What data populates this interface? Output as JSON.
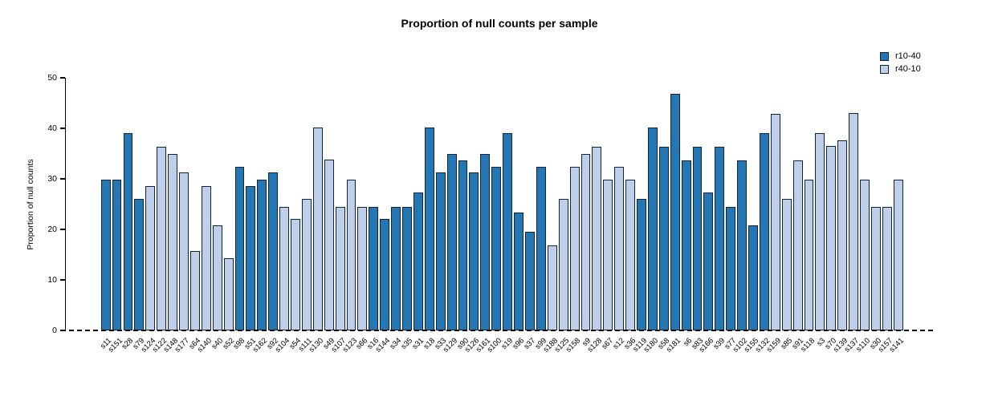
{
  "chart_data": {
    "type": "bar",
    "title": "Proportion of null counts per sample",
    "ylabel": "Proportion of null counts",
    "xlabel": "",
    "ylim": [
      0,
      50
    ],
    "yticks": [
      0,
      10,
      20,
      30,
      40,
      50
    ],
    "grid": false,
    "legend_position": "top-right",
    "baseline_style": "dashed-zero-line",
    "bar_border_color": "#0f2537",
    "series": [
      {
        "name": "r10-40",
        "color": "#2577B3"
      },
      {
        "name": "r40-10",
        "color": "#BFCEE9"
      }
    ],
    "samples": [
      {
        "id": "s11",
        "series": "r10-40",
        "value": 29.8
      },
      {
        "id": "s151",
        "series": "r10-40",
        "value": 29.8
      },
      {
        "id": "s28",
        "series": "r10-40",
        "value": 39.0
      },
      {
        "id": "s79",
        "series": "r10-40",
        "value": 26.0
      },
      {
        "id": "s124",
        "series": "r40-10",
        "value": 28.6
      },
      {
        "id": "s122",
        "series": "r40-10",
        "value": 36.4
      },
      {
        "id": "s148",
        "series": "r40-10",
        "value": 35.0
      },
      {
        "id": "s177",
        "series": "r40-10",
        "value": 31.2
      },
      {
        "id": "s64",
        "series": "r40-10",
        "value": 15.7
      },
      {
        "id": "s140",
        "series": "r40-10",
        "value": 28.5
      },
      {
        "id": "s40",
        "series": "r40-10",
        "value": 20.8
      },
      {
        "id": "s52",
        "series": "r40-10",
        "value": 14.3
      },
      {
        "id": "s98",
        "series": "r10-40",
        "value": 32.4
      },
      {
        "id": "s51",
        "series": "r10-40",
        "value": 28.5
      },
      {
        "id": "s162",
        "series": "r10-40",
        "value": 29.8
      },
      {
        "id": "s92",
        "series": "r10-40",
        "value": 31.2
      },
      {
        "id": "s104",
        "series": "r40-10",
        "value": 24.5
      },
      {
        "id": "s54",
        "series": "r40-10",
        "value": 22.0
      },
      {
        "id": "s111",
        "series": "r40-10",
        "value": 26.0
      },
      {
        "id": "s130",
        "series": "r40-10",
        "value": 40.2
      },
      {
        "id": "s49",
        "series": "r40-10",
        "value": 33.8
      },
      {
        "id": "s107",
        "series": "r40-10",
        "value": 24.5
      },
      {
        "id": "s123",
        "series": "r40-10",
        "value": 29.8
      },
      {
        "id": "s66",
        "series": "r40-10",
        "value": 24.5
      },
      {
        "id": "s16",
        "series": "r10-40",
        "value": 24.5
      },
      {
        "id": "s144",
        "series": "r10-40",
        "value": 22.0
      },
      {
        "id": "s34",
        "series": "r10-40",
        "value": 24.5
      },
      {
        "id": "s35",
        "series": "r10-40",
        "value": 24.5
      },
      {
        "id": "s31",
        "series": "r10-40",
        "value": 27.3
      },
      {
        "id": "s18",
        "series": "r10-40",
        "value": 40.2
      },
      {
        "id": "s33",
        "series": "r10-40",
        "value": 31.2
      },
      {
        "id": "s129",
        "series": "r10-40",
        "value": 35.0
      },
      {
        "id": "s90",
        "series": "r10-40",
        "value": 33.7
      },
      {
        "id": "s126",
        "series": "r10-40",
        "value": 31.2
      },
      {
        "id": "s161",
        "series": "r10-40",
        "value": 35.0
      },
      {
        "id": "s100",
        "series": "r10-40",
        "value": 32.4
      },
      {
        "id": "s19",
        "series": "r10-40",
        "value": 39.0
      },
      {
        "id": "s96",
        "series": "r10-40",
        "value": 23.3
      },
      {
        "id": "s37",
        "series": "r10-40",
        "value": 19.5
      },
      {
        "id": "s99",
        "series": "r10-40",
        "value": 32.4
      },
      {
        "id": "s188",
        "series": "r40-10",
        "value": 16.8
      },
      {
        "id": "s125",
        "series": "r40-10",
        "value": 26.0
      },
      {
        "id": "s158",
        "series": "r40-10",
        "value": 32.4
      },
      {
        "id": "s9",
        "series": "r40-10",
        "value": 35.0
      },
      {
        "id": "s128",
        "series": "r40-10",
        "value": 36.4
      },
      {
        "id": "s67",
        "series": "r40-10",
        "value": 29.8
      },
      {
        "id": "s12",
        "series": "r40-10",
        "value": 32.4
      },
      {
        "id": "s36",
        "series": "r40-10",
        "value": 29.8
      },
      {
        "id": "s119",
        "series": "r10-40",
        "value": 26.0
      },
      {
        "id": "s180",
        "series": "r10-40",
        "value": 40.2
      },
      {
        "id": "s58",
        "series": "r10-40",
        "value": 36.4
      },
      {
        "id": "s181",
        "series": "r10-40",
        "value": 46.8
      },
      {
        "id": "s6",
        "series": "r10-40",
        "value": 33.7
      },
      {
        "id": "s83",
        "series": "r10-40",
        "value": 36.4
      },
      {
        "id": "s166",
        "series": "r10-40",
        "value": 27.3
      },
      {
        "id": "s39",
        "series": "r10-40",
        "value": 36.4
      },
      {
        "id": "s77",
        "series": "r10-40",
        "value": 24.5
      },
      {
        "id": "s102",
        "series": "r10-40",
        "value": 33.7
      },
      {
        "id": "s155",
        "series": "r10-40",
        "value": 20.8
      },
      {
        "id": "s132",
        "series": "r10-40",
        "value": 39.0
      },
      {
        "id": "s159",
        "series": "r40-10",
        "value": 42.9
      },
      {
        "id": "s85",
        "series": "r40-10",
        "value": 26.0
      },
      {
        "id": "s91",
        "series": "r40-10",
        "value": 33.7
      },
      {
        "id": "s118",
        "series": "r40-10",
        "value": 29.8
      },
      {
        "id": "s3",
        "series": "r40-10",
        "value": 39.0
      },
      {
        "id": "s70",
        "series": "r40-10",
        "value": 36.5
      },
      {
        "id": "s139",
        "series": "r40-10",
        "value": 37.7
      },
      {
        "id": "s137",
        "series": "r40-10",
        "value": 43.0
      },
      {
        "id": "s110",
        "series": "r40-10",
        "value": 29.8
      },
      {
        "id": "s30",
        "series": "r40-10",
        "value": 24.5
      },
      {
        "id": "s157",
        "series": "r40-10",
        "value": 24.5
      },
      {
        "id": "s141",
        "series": "r40-10",
        "value": 29.8
      }
    ]
  }
}
